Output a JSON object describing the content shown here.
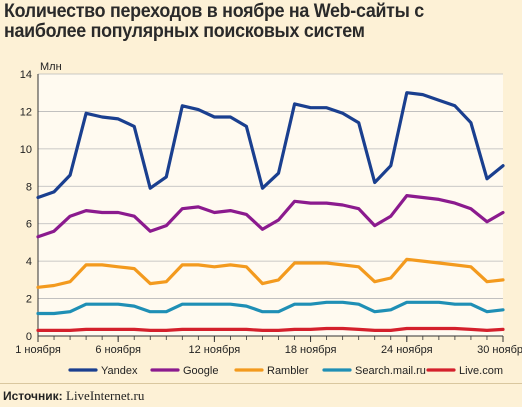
{
  "chart_data": {
    "type": "line",
    "title": "Количество переходов в ноябре на Web-сайты с наиболее популярных поисковых систем",
    "ylabel": "Млн",
    "xlabel": "",
    "ylim": [
      0,
      14
    ],
    "yticks": [
      0,
      2,
      4,
      6,
      8,
      10,
      12,
      14
    ],
    "grid": true,
    "legend_position": "bottom",
    "x": [
      1,
      2,
      3,
      4,
      5,
      6,
      7,
      8,
      9,
      10,
      11,
      12,
      13,
      14,
      15,
      16,
      17,
      18,
      19,
      20,
      21,
      22,
      23,
      24,
      25,
      26,
      27,
      28,
      29,
      30
    ],
    "x_tick_positions": [
      1,
      6,
      12,
      18,
      24,
      30
    ],
    "x_tick_labels": [
      "1 ноября",
      "6 ноября",
      "12 ноября",
      "18 ноября",
      "24 ноября",
      "30 ноября"
    ],
    "series": [
      {
        "name": "Yandex",
        "color": "#1a3f8f",
        "values": [
          7.4,
          7.7,
          8.6,
          11.9,
          11.7,
          11.6,
          11.2,
          7.9,
          8.5,
          12.3,
          12.1,
          11.7,
          11.7,
          11.2,
          7.9,
          8.7,
          12.4,
          12.2,
          12.2,
          11.9,
          11.4,
          8.2,
          9.1,
          13.0,
          12.9,
          12.6,
          12.3,
          11.4,
          8.4,
          9.1
        ]
      },
      {
        "name": "Google",
        "color": "#8b1a8e",
        "values": [
          5.3,
          5.6,
          6.4,
          6.7,
          6.6,
          6.6,
          6.4,
          5.6,
          5.9,
          6.8,
          6.9,
          6.6,
          6.7,
          6.5,
          5.7,
          6.2,
          7.2,
          7.1,
          7.1,
          7.0,
          6.8,
          5.9,
          6.4,
          7.5,
          7.4,
          7.3,
          7.1,
          6.8,
          6.1,
          6.6
        ]
      },
      {
        "name": "Rambler",
        "color": "#f39a1e",
        "values": [
          2.6,
          2.7,
          2.9,
          3.8,
          3.8,
          3.7,
          3.6,
          2.8,
          2.9,
          3.8,
          3.8,
          3.7,
          3.8,
          3.7,
          2.8,
          3.0,
          3.9,
          3.9,
          3.9,
          3.8,
          3.7,
          2.9,
          3.1,
          4.1,
          4.0,
          3.9,
          3.8,
          3.7,
          2.9,
          3.0
        ]
      },
      {
        "name": "Search.mail.ru",
        "color": "#1f8fb5",
        "values": [
          1.2,
          1.2,
          1.3,
          1.7,
          1.7,
          1.7,
          1.6,
          1.3,
          1.3,
          1.7,
          1.7,
          1.7,
          1.7,
          1.6,
          1.3,
          1.3,
          1.7,
          1.7,
          1.8,
          1.8,
          1.7,
          1.3,
          1.4,
          1.8,
          1.8,
          1.8,
          1.7,
          1.7,
          1.3,
          1.4
        ]
      },
      {
        "name": "Live.com",
        "color": "#d4202c",
        "values": [
          0.3,
          0.3,
          0.3,
          0.35,
          0.35,
          0.35,
          0.35,
          0.3,
          0.3,
          0.35,
          0.35,
          0.35,
          0.35,
          0.35,
          0.3,
          0.3,
          0.35,
          0.35,
          0.4,
          0.4,
          0.35,
          0.3,
          0.3,
          0.4,
          0.4,
          0.4,
          0.4,
          0.35,
          0.3,
          0.35
        ]
      }
    ],
    "source_label": "Источник:",
    "source_value": "LiveInternet.ru"
  }
}
